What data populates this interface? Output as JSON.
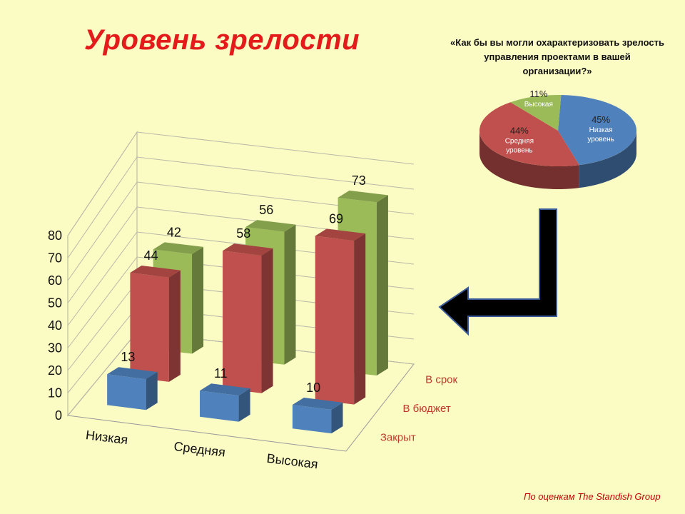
{
  "title": "Уровень зрелости",
  "question": "«Как бы вы могли охарактеризовать зрелость управления проектами в вашей организации?»",
  "source": "По оценкам  The Standish Group",
  "colors": {
    "blue": "#4f81bd",
    "red": "#c0504d",
    "green": "#9bbb59",
    "title": "#e41b1b",
    "background": "#fbfbc4",
    "arrow": "#000000"
  },
  "chart_data": [
    {
      "type": "bar",
      "categories": [
        "Низкая",
        "Средняя",
        "Высокая"
      ],
      "series": [
        {
          "name": "Закрыт",
          "values": [
            13,
            11,
            10
          ]
        },
        {
          "name": "В бюджет",
          "values": [
            44,
            58,
            69
          ]
        },
        {
          "name": "В срок",
          "values": [
            42,
            56,
            73
          ]
        }
      ],
      "yticks": [
        "0",
        "10",
        "20",
        "30",
        "40",
        "50",
        "60",
        "70",
        "80"
      ],
      "ylim": [
        0,
        80
      ],
      "grid": true
    },
    {
      "type": "pie",
      "slices": [
        {
          "label": "Низкая уровень",
          "value": 45,
          "pct": "45%"
        },
        {
          "label": "Средняя уровень",
          "value": 44,
          "pct": "44%"
        },
        {
          "label": "Высокая",
          "value": 11,
          "pct": "11%"
        }
      ]
    }
  ],
  "arrow_icon": "arrow-left-bent-icon"
}
